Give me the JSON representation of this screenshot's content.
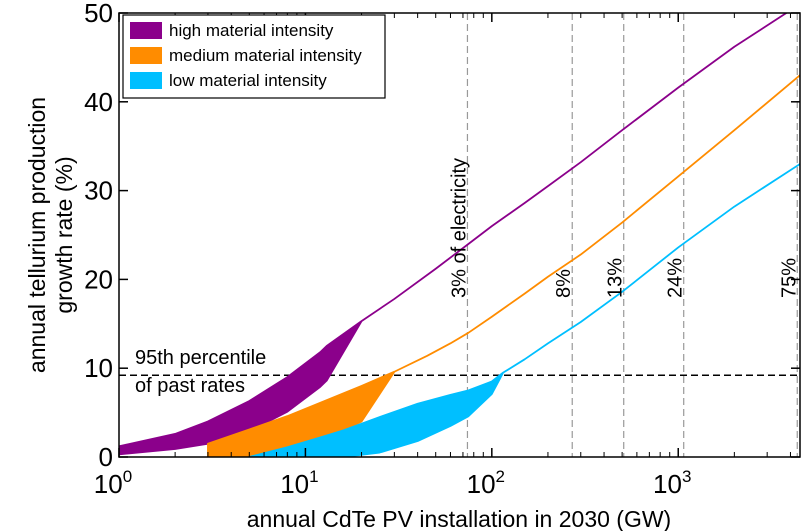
{
  "chart_data": {
    "type": "area",
    "xlabel": "annual CdTe PV installation in 2030 (GW)",
    "ylabel_lines": [
      "annual tellurium production",
      "growth rate (%)"
    ],
    "xscale": "log",
    "xlim": [
      1,
      4500
    ],
    "ylim": [
      0,
      50
    ],
    "xticks": [
      {
        "value": 1,
        "base": "10",
        "exp": "0"
      },
      {
        "value": 10,
        "base": "10",
        "exp": "1"
      },
      {
        "value": 100,
        "base": "10",
        "exp": "2"
      },
      {
        "value": 1000,
        "base": "10",
        "exp": "3"
      }
    ],
    "yticks": [
      0,
      10,
      20,
      30,
      40,
      50
    ],
    "legend_position": "top-left",
    "series": [
      {
        "name": "high material intensity",
        "color": "#8b008b",
        "x": [
          1,
          2,
          3,
          5,
          8,
          12,
          13,
          20,
          30,
          50,
          75,
          100,
          150,
          200,
          300,
          500,
          1000,
          2000,
          4500
        ],
        "upper": [
          1.2,
          2.6,
          4.0,
          6.3,
          9.0,
          11.8,
          12.5,
          15.3,
          17.8,
          21.2,
          24.0,
          26.0,
          28.6,
          30.5,
          33.2,
          36.8,
          41.6,
          46.2,
          51.0
        ],
        "lower": [
          0.3,
          0.9,
          1.5,
          2.9,
          5.1,
          7.9,
          8.6,
          15.3,
          17.8,
          21.2,
          24.0,
          26.0,
          28.6,
          30.5,
          33.2,
          36.8,
          41.6,
          46.2,
          51.0
        ]
      },
      {
        "name": "medium material intensity",
        "color": "#ff8c00",
        "x": [
          3,
          5,
          8,
          12,
          20,
          30,
          45,
          60,
          75,
          100,
          150,
          200,
          300,
          500,
          1000,
          2000,
          4500
        ],
        "upper": [
          1.5,
          3.1,
          4.6,
          6.1,
          8.0,
          9.6,
          11.4,
          12.8,
          14.0,
          15.8,
          18.4,
          20.3,
          22.8,
          26.4,
          31.6,
          36.8,
          43.0
        ],
        "lower": [
          0.0,
          0.1,
          0.7,
          1.7,
          4.0,
          9.6,
          11.4,
          12.8,
          14.0,
          15.8,
          18.4,
          20.3,
          22.8,
          26.4,
          31.6,
          36.8,
          43.0
        ]
      },
      {
        "name": "low material intensity",
        "color": "#00bfff",
        "x": [
          5,
          8,
          12,
          16,
          25,
          40,
          60,
          75,
          100,
          115,
          150,
          200,
          300,
          500,
          1000,
          2000,
          4500
        ],
        "upper": [
          0.0,
          1.1,
          2.2,
          3.0,
          4.5,
          6.0,
          7.0,
          7.5,
          8.5,
          9.5,
          11.0,
          12.8,
          15.2,
          18.6,
          23.6,
          28.2,
          33.0
        ],
        "lower": [
          0.0,
          0.0,
          0.0,
          0.0,
          0.5,
          1.8,
          3.5,
          4.6,
          7.1,
          9.5,
          11.0,
          12.8,
          15.2,
          18.6,
          23.6,
          28.2,
          33.0
        ]
      }
    ],
    "reference_line": {
      "y": 9.2,
      "label_lines": [
        "95th percentile",
        "of past rates"
      ]
    },
    "vertical_lines": [
      {
        "x": 74,
        "label": "3% of electricity"
      },
      {
        "x": 270,
        "label": "8%"
      },
      {
        "x": 510,
        "label": "13%"
      },
      {
        "x": 1070,
        "label": "24%"
      },
      {
        "x": 4350,
        "label": "75%"
      }
    ]
  }
}
